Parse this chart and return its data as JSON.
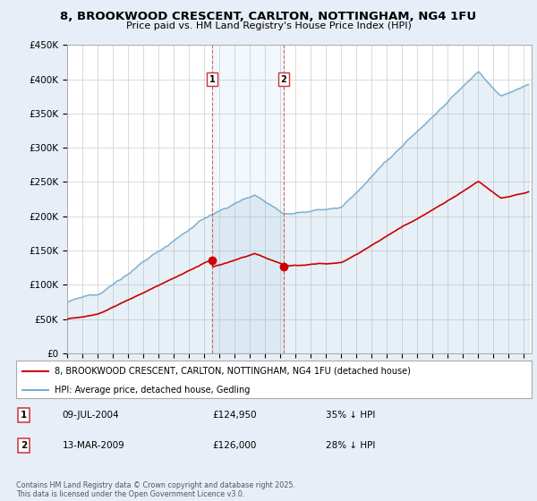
{
  "title": "8, BROOKWOOD CRESCENT, CARLTON, NOTTINGHAM, NG4 1FU",
  "subtitle": "Price paid vs. HM Land Registry's House Price Index (HPI)",
  "ylim": [
    0,
    450000
  ],
  "xlim_start": 1995.0,
  "xlim_end": 2025.5,
  "legend_line1": "8, BROOKWOOD CRESCENT, CARLTON, NOTTINGHAM, NG4 1FU (detached house)",
  "legend_line2": "HPI: Average price, detached house, Gedling",
  "ann1_num": "1",
  "ann1_date": "09-JUL-2004",
  "ann1_price": "£124,950",
  "ann1_pct": "35% ↓ HPI",
  "ann1_x": 2004.52,
  "ann1_y": 124950,
  "ann2_num": "2",
  "ann2_date": "13-MAR-2009",
  "ann2_price": "£126,000",
  "ann2_pct": "28% ↓ HPI",
  "ann2_x": 2009.21,
  "ann2_y": 126000,
  "copyright": "Contains HM Land Registry data © Crown copyright and database right 2025.\nThis data is licensed under the Open Government Licence v3.0.",
  "bg_color": "#e8eef8",
  "plot_bg_color": "#ffffff",
  "line_color_red": "#cc0000",
  "line_color_blue": "#7aadcf",
  "fill_color_blue": "#ddeeff",
  "vline_color": "#cc4444"
}
